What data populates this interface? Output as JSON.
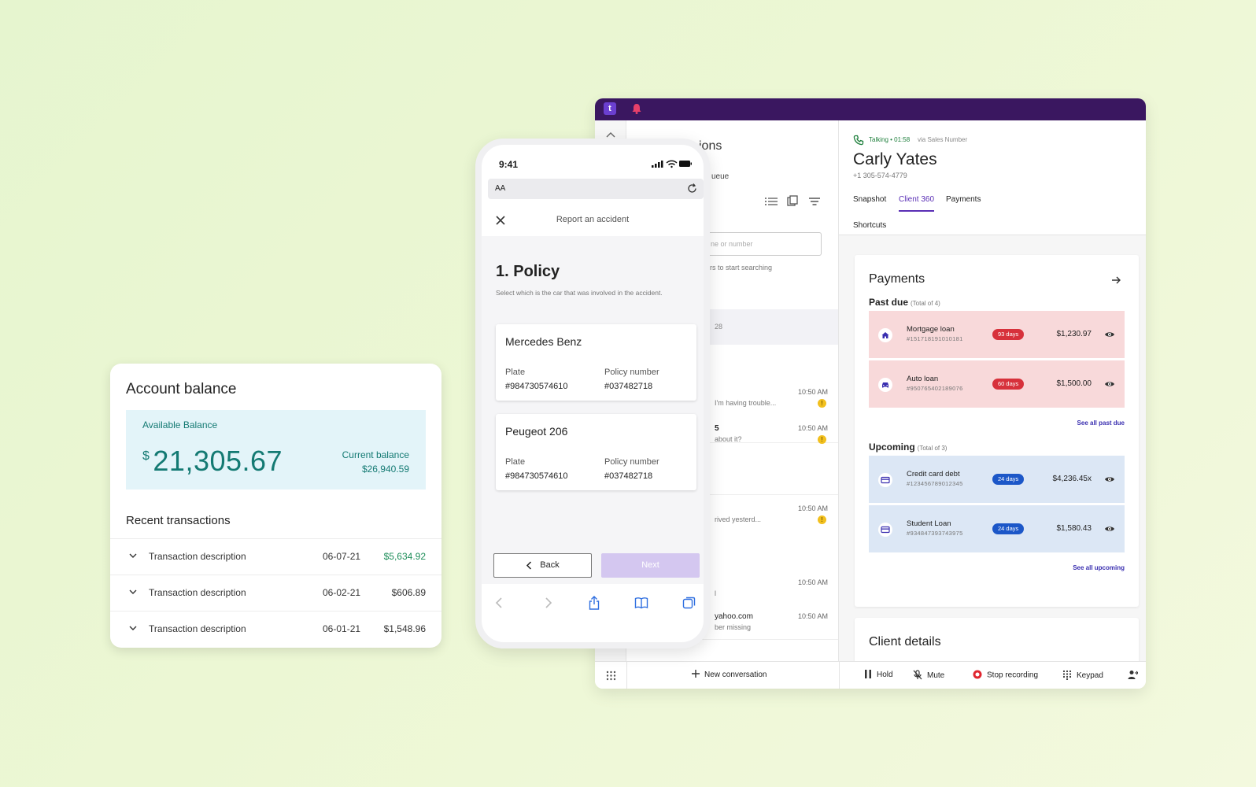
{
  "account": {
    "title": "Account balance",
    "available_label": "Available Balance",
    "currency_symbol": "$",
    "available_amount": "21,305.67",
    "current_label": "Current balance",
    "current_amount": "$26,940.59",
    "recent_title": "Recent transactions",
    "transactions": [
      {
        "description": "Transaction description",
        "date": "06-07-21",
        "amount": "$5,634.92",
        "positive": true
      },
      {
        "description": "Transaction description",
        "date": "06-02-21",
        "amount": "$606.89",
        "positive": false
      },
      {
        "description": "Transaction description",
        "date": "06-01-21",
        "amount": "$1,548.96",
        "positive": false
      }
    ],
    "accent_color": "#147a73"
  },
  "phone": {
    "time": "9:41",
    "url_text_size": "AA",
    "header_title": "Report an accident",
    "step_title": "1. Policy",
    "step_subtitle": "Select which is the car that was involved in the accident.",
    "cars": [
      {
        "name": "Mercedes Benz",
        "plate_label": "Plate",
        "plate": "#984730574610",
        "policy_label": "Policy number",
        "policy": "#037482718"
      },
      {
        "name": "Peugeot 206",
        "plate_label": "Plate",
        "plate": "#984730574610",
        "policy_label": "Policy number",
        "policy": "#037482718"
      }
    ],
    "back_label": "Back",
    "next_label": "Next"
  },
  "app": {
    "brand_color": "#3a1760",
    "conversations": {
      "title_partial": "ions",
      "queue_partial": "ueue",
      "search_placeholder": "ne or number",
      "search_hint": "rs to start searching",
      "selected_partial": "28",
      "items": [
        {
          "name": "",
          "preview": "I'm having trouble...",
          "time": "10:50 AM",
          "unread": "!"
        },
        {
          "name": "5",
          "preview": "about it?",
          "time": "10:50 AM",
          "unread": "!"
        },
        {
          "name": "",
          "preview": "rived yesterd...",
          "time": "10:50 AM",
          "unread": "!"
        },
        {
          "name": "",
          "preview": "l",
          "time": "10:50 AM",
          "unread": ""
        },
        {
          "name": "yahoo.com",
          "preview": "ber missing",
          "time": "10:50 AM",
          "unread": ""
        }
      ]
    },
    "call": {
      "status": "Talking • 01:58",
      "via": "via Sales Number",
      "contact_name": "Carly Yates",
      "contact_phone": "+1 305-574-4779",
      "tabs": [
        "Snapshot",
        "Client 360",
        "Payments"
      ],
      "active_tab": "Client 360",
      "shortcuts_label": "Shortcuts"
    },
    "payments": {
      "title": "Payments",
      "past_due_title": "Past due",
      "past_due_total": "(Total of 4)",
      "past_due": [
        {
          "icon": "home-icon",
          "name": "Mortgage loan",
          "number": "#151718191010181",
          "badge": "93 days",
          "amount": "$1,230.97"
        },
        {
          "icon": "car-icon",
          "name": "Auto loan",
          "number": "#950765402189076",
          "badge": "60 days",
          "amount": "$1,500.00"
        }
      ],
      "see_all_past_due": "See all past due",
      "upcoming_title": "Upcoming",
      "upcoming_total": "(Total of 3)",
      "upcoming": [
        {
          "icon": "card-icon",
          "name": "Credit card debt",
          "number": "#123456789012345",
          "badge": "24 days",
          "amount": "$4,236.45x"
        },
        {
          "icon": "card-icon",
          "name": "Student Loan",
          "number": "#934847393743975",
          "badge": "24 days",
          "amount": "$1,580.43"
        }
      ],
      "see_all_upcoming": "See all upcoming"
    },
    "client_details_title": "Client details",
    "bottom_bar": {
      "new_conversation": "New conversation",
      "hold": "Hold",
      "mute": "Mute",
      "stop_recording": "Stop recording",
      "keypad": "Keypad"
    }
  }
}
